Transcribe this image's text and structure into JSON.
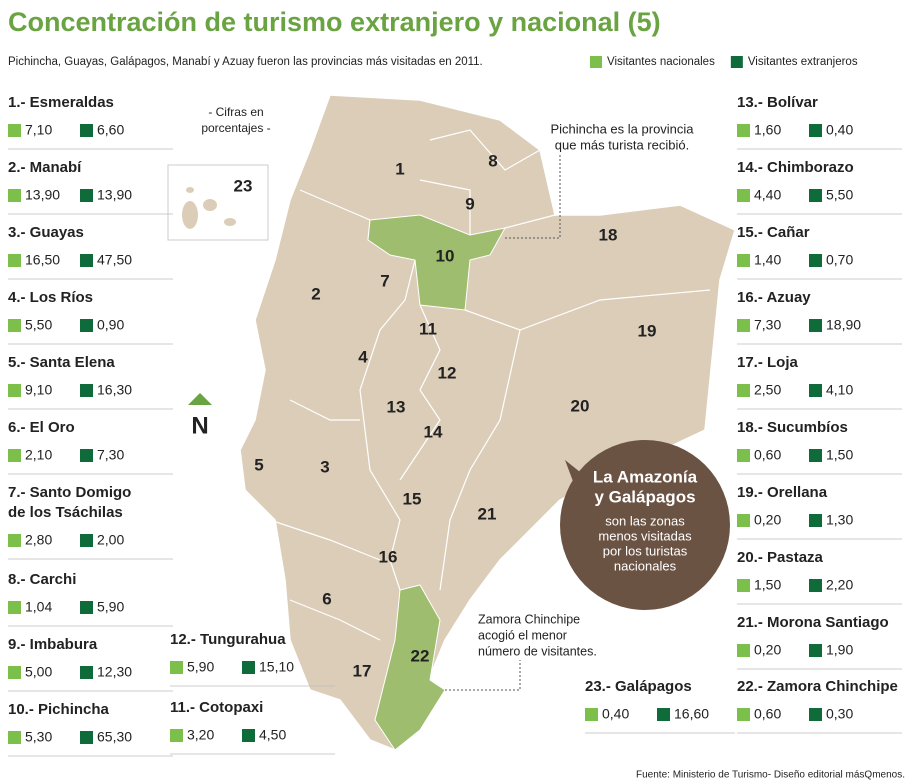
{
  "title": "Concentración de turismo extranjero y nacional (5)",
  "subtitle": "Pichincha, Guayas, Galápagos, Manabí y Azuay fueron las provincias más visitadas en 2011.",
  "legend": [
    {
      "name": "Visitantes nacionales",
      "color": "#7cc04b"
    },
    {
      "name": "Visitantes extranjeros",
      "color": "#0f6b3a"
    }
  ],
  "note": [
    "- Cifras en",
    "porcentajes -"
  ],
  "north": "N",
  "provinces": [
    {
      "label": [
        "1.- Esmeraldas"
      ],
      "nacional": "7,10",
      "extranjero": "6,60"
    },
    {
      "label": [
        "2.- Manabí"
      ],
      "nacional": "13,90",
      "extranjero": "13,90"
    },
    {
      "label": [
        "3.- Guayas"
      ],
      "nacional": "16,50",
      "extranjero": "47,50"
    },
    {
      "label": [
        "4.- Los Ríos"
      ],
      "nacional": "5,50",
      "extranjero": "0,90"
    },
    {
      "label": [
        "5.- Santa Elena"
      ],
      "nacional": "9,10",
      "extranjero": "16,30"
    },
    {
      "label": [
        "6.- El Oro"
      ],
      "nacional": "2,10",
      "extranjero": "7,30"
    },
    {
      "label": [
        "7.- Santo Domigo",
        "de los Tsáchilas"
      ],
      "nacional": "2,80",
      "extranjero": "2,00"
    },
    {
      "label": [
        "8.- Carchi"
      ],
      "nacional": "1,04",
      "extranjero": "5,90"
    },
    {
      "label": [
        "9.- Imbabura"
      ],
      "nacional": "5,00",
      "extranjero": "12,30"
    },
    {
      "label": [
        "10.- Pichincha"
      ],
      "nacional": "5,30",
      "extranjero": "65,30"
    },
    {
      "label": [
        "11.- Cotopaxi"
      ],
      "nacional": "3,20",
      "extranjero": "4,50"
    },
    {
      "label": [
        "12.- Tungurahua"
      ],
      "nacional": "5,90",
      "extranjero": "15,10"
    },
    {
      "label": [
        "13.- Bolívar"
      ],
      "nacional": "1,60",
      "extranjero": "0,40"
    },
    {
      "label": [
        "14.- Chimborazo"
      ],
      "nacional": "4,40",
      "extranjero": "5,50"
    },
    {
      "label": [
        "15.- Cañar"
      ],
      "nacional": "1,40",
      "extranjero": "0,70"
    },
    {
      "label": [
        "16.- Azuay"
      ],
      "nacional": "7,30",
      "extranjero": "18,90"
    },
    {
      "label": [
        "17.- Loja"
      ],
      "nacional": "2,50",
      "extranjero": "4,10"
    },
    {
      "label": [
        "18.- Sucumbíos"
      ],
      "nacional": "0,60",
      "extranjero": "1,50"
    },
    {
      "label": [
        "19.- Orellana"
      ],
      "nacional": "0,20",
      "extranjero": "1,30"
    },
    {
      "label": [
        "20.- Pastaza"
      ],
      "nacional": "1,50",
      "extranjero": "2,20"
    },
    {
      "label": [
        "21.- Morona Santiago"
      ],
      "nacional": "0,20",
      "extranjero": "1,90"
    },
    {
      "label": [
        "22.- Zamora Chinchipe"
      ],
      "nacional": "0,60",
      "extranjero": "0,30"
    },
    {
      "label": [
        "23.- Galápagos"
      ],
      "nacional": "0,40",
      "extranjero": "16,60"
    }
  ],
  "map_labels": [
    "1",
    "2",
    "3",
    "4",
    "5",
    "6",
    "7",
    "8",
    "9",
    "10",
    "11",
    "12",
    "13",
    "14",
    "15",
    "16",
    "17",
    "18",
    "19",
    "20",
    "21",
    "22",
    "23"
  ],
  "annotations": {
    "pichincha": [
      "Pichincha es la provincia",
      "que más turista recibió."
    ],
    "zamora": [
      "Zamora Chinchipe",
      "acogió el menor",
      "número de visitantes."
    ],
    "amazonia": {
      "bold": [
        "La Amazonía",
        "y Galápagos"
      ],
      "text": [
        "son las zonas",
        "menos visitadas",
        "por los turistas",
        "nacionales"
      ]
    }
  },
  "source": "Fuente: Ministerio de Turismo- Diseño editorial másQmenos."
}
